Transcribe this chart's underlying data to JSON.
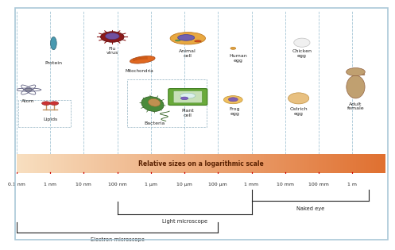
{
  "bg_color": "#cce0ea",
  "scale_bar_left": "#f8dfc0",
  "scale_bar_right": "#e07030",
  "title_scale": "Relative sizes on a logarithmic scale",
  "tick_labels": [
    "0.1 nm",
    "1 nm",
    "10 nm",
    "100 nm",
    "1 μm",
    "10 μm",
    "100 μm",
    "1 mm",
    "10 mm",
    "100 mm",
    "1 m"
  ],
  "tick_positions": [
    0,
    1,
    2,
    3,
    4,
    5,
    6,
    7,
    8,
    9,
    10
  ],
  "border_color": "#aac8d8",
  "text_color": "#222222",
  "scale_title_color": "#5a2000",
  "tick_color": "#cc0000",
  "bracket_color": "#222222",
  "dashed_line_color": "#90b8cc"
}
